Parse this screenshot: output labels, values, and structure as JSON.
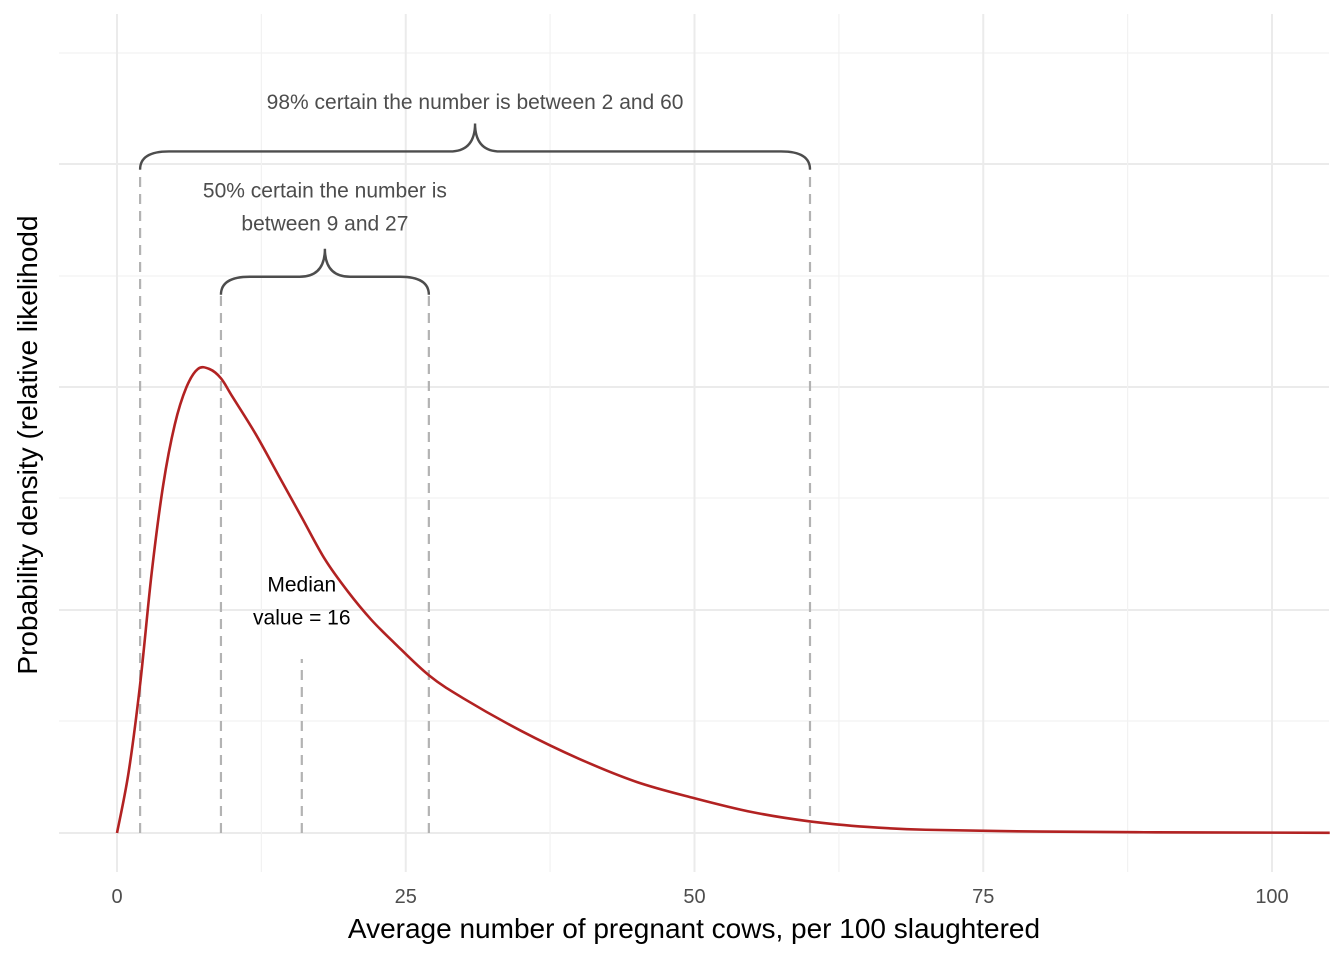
{
  "chart_data": {
    "type": "line",
    "title": "",
    "xlabel": "Average number of pregnant cows, per 100 slaughtered",
    "ylabel": "Probability density (relative likelihodd",
    "xlim": [
      -5,
      105
    ],
    "ylim": [
      0,
      1.12
    ],
    "x_ticks": [
      0,
      25,
      50,
      75,
      100
    ],
    "x_tick_labels": [
      "0",
      "25",
      "50",
      "75",
      "100"
    ],
    "grid": true,
    "line_color": "#b22222",
    "series": [
      {
        "x": [
          0,
          1,
          2,
          3,
          4,
          5,
          6,
          7,
          8,
          9,
          10,
          12,
          14,
          16,
          18,
          20,
          22,
          24,
          27,
          30,
          35,
          40,
          45,
          50,
          55,
          60,
          65,
          70,
          80,
          90,
          100,
          105
        ],
        "y": [
          0.0,
          0.13,
          0.32,
          0.56,
          0.75,
          0.88,
          0.96,
          1.0,
          1.0,
          0.98,
          0.94,
          0.86,
          0.77,
          0.68,
          0.59,
          0.52,
          0.46,
          0.41,
          0.34,
          0.29,
          0.22,
          0.16,
          0.11,
          0.075,
          0.045,
          0.025,
          0.013,
          0.007,
          0.003,
          0.0015,
          0.0008,
          0.0005
        ]
      }
    ],
    "vertical_markers": [
      {
        "x": 2,
        "y_top": 1.43
      },
      {
        "x": 9,
        "y_top": 1.16
      },
      {
        "x": 16,
        "y_top": 0.375
      },
      {
        "x": 27,
        "y_top": 1.16
      },
      {
        "x": 60,
        "y_top": 1.43
      }
    ],
    "braces": [
      {
        "x_start": 2,
        "x_end": 60,
        "y": 1.43
      },
      {
        "x_start": 9,
        "x_end": 27,
        "y": 1.16
      }
    ],
    "annotations": [
      {
        "lines": [
          "98% certain the number is between 2 and 60"
        ],
        "x": 31,
        "y": 1.56,
        "color": "#4d4d4d"
      },
      {
        "lines": [
          "50% certain the number is",
          "between 9 and 27"
        ],
        "x": 18,
        "y": 1.37,
        "color": "#4d4d4d"
      },
      {
        "lines": [
          "Median",
          "value = 16"
        ],
        "x": 16,
        "y": 0.52,
        "color": "#000000"
      }
    ]
  }
}
